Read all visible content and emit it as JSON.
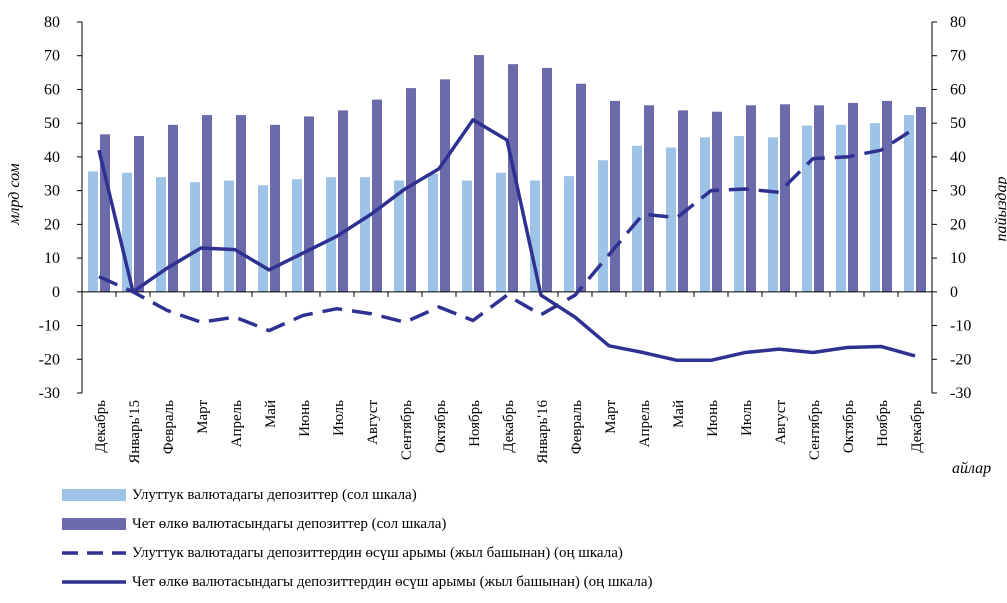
{
  "chart_data": {
    "type": "bar",
    "categories": [
      "Декабрь",
      "Январь'15",
      "Февраль",
      "Март",
      "Апрель",
      "Май",
      "Июнь",
      "Июль",
      "Август",
      "Сентябрь",
      "Октябрь",
      "Ноябрь",
      "Декабрь",
      "Январь'16",
      "Февраль",
      "Март",
      "Апрель",
      "Май",
      "Июнь",
      "Июль",
      "Август",
      "Сентябрь",
      "Октябрь",
      "Ноябрь",
      "Декабрь"
    ],
    "ylabel_left": "млрд сом",
    "ylabel_right": "пайыздар",
    "xlabel": "айлар",
    "ylim_left": [
      -30,
      80
    ],
    "ylim_right": [
      -30,
      80
    ],
    "yticks": [
      -30,
      -20,
      -10,
      0,
      10,
      20,
      30,
      40,
      50,
      60,
      70,
      80
    ],
    "grid": false,
    "legend_position": "bottom",
    "series": [
      {
        "name": "Улуттук валютадагы депозиттер (сол шкала)",
        "type": "bar",
        "axis": "left",
        "color": "#9dc3e6",
        "values": [
          35.7,
          35.3,
          34.0,
          32.5,
          33.0,
          31.6,
          33.4,
          34.0,
          34.0,
          33.0,
          35.0,
          33.0,
          35.3,
          33.0,
          34.3,
          39.0,
          43.3,
          42.8,
          45.8,
          46.2,
          45.8,
          49.3,
          49.5,
          50.0,
          52.4
        ]
      },
      {
        "name": "Чет өлкө валютасындагы депозиттер (сол шкала)",
        "type": "bar",
        "axis": "left",
        "color": "#6b6bab",
        "values": [
          46.7,
          46.2,
          49.5,
          52.4,
          52.4,
          49.5,
          52.0,
          53.8,
          57.0,
          60.4,
          63.0,
          70.2,
          67.5,
          66.4,
          61.7,
          56.6,
          55.3,
          53.8,
          53.4,
          55.3,
          55.6,
          55.3,
          56.0,
          56.6,
          54.8
        ]
      },
      {
        "name": "Улуттук валютадагы депозиттердин өсүш арымы (жыл башынан) (оң шкала)",
        "type": "line",
        "dashed": true,
        "axis": "right",
        "color": "#2e3192",
        "values": [
          4.5,
          0.0,
          -5.5,
          -9.0,
          -7.5,
          -11.5,
          -7.0,
          -5.0,
          -6.5,
          -9.0,
          -4.5,
          -8.5,
          -1.0,
          -6.8,
          -1.0,
          11.0,
          23.0,
          22.0,
          30.0,
          30.5,
          29.5,
          39.5,
          40.0,
          42.0,
          48.5
        ]
      },
      {
        "name": "Чет өлкө валютасындагы депозиттердин өсүш арымы (жыл башынан) (оң шкала)",
        "type": "line",
        "dashed": false,
        "axis": "right",
        "color": "#2e3192",
        "values": [
          42.0,
          0.0,
          7.0,
          13.0,
          12.5,
          6.5,
          11.5,
          16.5,
          23.0,
          30.5,
          36.5,
          51.0,
          45.0,
          -1.0,
          -7.5,
          -16.0,
          -18.0,
          -20.3,
          -20.3,
          -18.0,
          -17.0,
          -18.0,
          -16.5,
          -16.2,
          -19.0
        ]
      }
    ]
  }
}
